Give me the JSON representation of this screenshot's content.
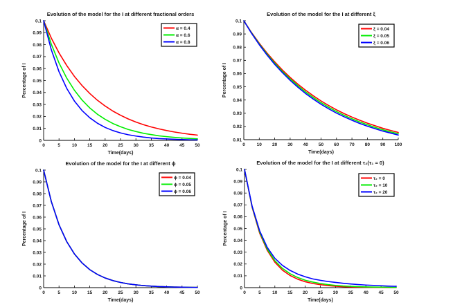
{
  "figure": {
    "background": "#ffffff",
    "axis_color": "#000000",
    "text_color": "#1a1a1a"
  },
  "chart_data": [
    {
      "id": "fractional-orders",
      "type": "line",
      "title": "Evolution of the model for the I at different fractional orders",
      "xlabel": "Time(days)",
      "ylabel": "Percentage of I",
      "xlim": [
        0,
        50
      ],
      "ylim": [
        0,
        0.1
      ],
      "xticks": [
        "0",
        "5",
        "10",
        "15",
        "20",
        "25",
        "30",
        "35",
        "40",
        "45",
        "50"
      ],
      "yticks": [
        "0",
        "0.01",
        "0.02",
        "0.03",
        "0.04",
        "0.05",
        "0.06",
        "0.07",
        "0.08",
        "0.09",
        "0.1"
      ],
      "grid": false,
      "legend_position": "top-right",
      "x": [
        0,
        2.5,
        5,
        7.5,
        10,
        12.5,
        15,
        17.5,
        20,
        22.5,
        25,
        27.5,
        30,
        32.5,
        35,
        37.5,
        40,
        42.5,
        45,
        47.5,
        50
      ],
      "series": [
        {
          "name": "α = 0.4",
          "color": "#ff0000",
          "values": [
            0.1,
            0.0855,
            0.0731,
            0.0626,
            0.0535,
            0.0458,
            0.0392,
            0.0335,
            0.0287,
            0.0245,
            0.021,
            0.0179,
            0.0153,
            0.0131,
            0.0112,
            0.0096,
            0.0082,
            0.007,
            0.006,
            0.0051,
            0.0044
          ]
        },
        {
          "name": "α = 0.6",
          "color": "#00ee00",
          "values": [
            0.1,
            0.0804,
            0.0647,
            0.0521,
            0.0419,
            0.0337,
            0.0271,
            0.0218,
            0.0176,
            0.0141,
            0.0114,
            0.0091,
            0.0074,
            0.0059,
            0.0048,
            0.0038,
            0.0031,
            0.0025,
            0.002,
            0.0016,
            0.0013
          ]
        },
        {
          "name": "α = 0.8",
          "color": "#0000ff",
          "values": [
            0.1,
            0.0757,
            0.0574,
            0.0435,
            0.0329,
            0.0249,
            0.0189,
            0.0143,
            0.0108,
            0.0082,
            0.0062,
            0.0047,
            0.0036,
            0.0027,
            0.002,
            0.0015,
            0.0012,
            0.0009,
            0.0007,
            0.0005,
            0.0004
          ]
        }
      ]
    },
    {
      "id": "xi",
      "type": "line",
      "title": "Evolution of the model for the I at different ξ",
      "xlabel": "Time(days)",
      "ylabel": "Percentage of I",
      "xlim": [
        0,
        100
      ],
      "ylim": [
        0.01,
        0.1
      ],
      "xticks": [
        "0",
        "10",
        "20",
        "30",
        "40",
        "50",
        "60",
        "70",
        "80",
        "90",
        "100"
      ],
      "yticks": [
        "0.01",
        "0.02",
        "0.03",
        "0.04",
        "0.05",
        "0.06",
        "0.07",
        "0.08",
        "0.09",
        "0.1"
      ],
      "grid": false,
      "legend_position": "top-right",
      "x": [
        0,
        5,
        10,
        15,
        20,
        25,
        30,
        35,
        40,
        45,
        50,
        55,
        60,
        65,
        70,
        75,
        80,
        85,
        90,
        95,
        100
      ],
      "series": [
        {
          "name": "ξ = 0.04",
          "color": "#ff0000",
          "values": [
            0.1,
            0.0911,
            0.083,
            0.0756,
            0.0689,
            0.0627,
            0.0571,
            0.052,
            0.0474,
            0.0432,
            0.0393,
            0.0358,
            0.0326,
            0.0297,
            0.0271,
            0.0247,
            0.0225,
            0.0205,
            0.0186,
            0.017,
            0.0155
          ]
        },
        {
          "name": "ξ = 0.05",
          "color": "#00ee00",
          "values": [
            0.1,
            0.0908,
            0.0824,
            0.0748,
            0.0679,
            0.0616,
            0.056,
            0.0508,
            0.0461,
            0.0419,
            0.038,
            0.0345,
            0.0313,
            0.0284,
            0.0258,
            0.0234,
            0.0213,
            0.0193,
            0.0175,
            0.0159,
            0.0145
          ]
        },
        {
          "name": "ξ = 0.06",
          "color": "#0000ff",
          "values": [
            0.1,
            0.0905,
            0.0819,
            0.0741,
            0.067,
            0.0607,
            0.0549,
            0.0497,
            0.0449,
            0.0407,
            0.0368,
            0.0333,
            0.0301,
            0.0273,
            0.0247,
            0.0223,
            0.0202,
            0.0183,
            0.0165,
            0.015,
            0.0135
          ]
        }
      ]
    },
    {
      "id": "phi",
      "type": "line",
      "title": "Evolution of the model for the I at different ϕ",
      "xlabel": "Time(days)",
      "ylabel": "Percentage of I",
      "xlim": [
        0,
        50
      ],
      "ylim": [
        0,
        0.1
      ],
      "xticks": [
        "0",
        "5",
        "10",
        "15",
        "20",
        "25",
        "30",
        "35",
        "40",
        "45",
        "50"
      ],
      "yticks": [
        "0",
        "0.01",
        "0.02",
        "0.03",
        "0.04",
        "0.05",
        "0.06",
        "0.07",
        "0.08",
        "0.09",
        "0.1"
      ],
      "grid": false,
      "legend_position": "top-right",
      "x": [
        0,
        2.5,
        5,
        7.5,
        10,
        12.5,
        15,
        17.5,
        20,
        22.5,
        25,
        27.5,
        30,
        32.5,
        35,
        37.5,
        40,
        42.5,
        45,
        47.5,
        50
      ],
      "series": [
        {
          "name": "ϕ = 0.04",
          "color": "#ff0000",
          "values": [
            0.1,
            0.0732,
            0.0535,
            0.0392,
            0.0287,
            0.021,
            0.0153,
            0.0112,
            0.0082,
            0.006,
            0.0044,
            0.0032,
            0.0024,
            0.0017,
            0.0013,
            0.0009,
            0.0007,
            0.0005,
            0.0004,
            0.0003,
            0.0002
          ]
        },
        {
          "name": "ϕ = 0.05",
          "color": "#00ee00",
          "values": [
            0.1,
            0.0732,
            0.0535,
            0.0392,
            0.0287,
            0.021,
            0.0153,
            0.0112,
            0.0082,
            0.006,
            0.0044,
            0.0032,
            0.0024,
            0.0017,
            0.0013,
            0.0009,
            0.0007,
            0.0005,
            0.0004,
            0.0003,
            0.0002
          ]
        },
        {
          "name": "ϕ = 0.06",
          "color": "#0000ff",
          "values": [
            0.1,
            0.0732,
            0.0535,
            0.0392,
            0.0287,
            0.021,
            0.0153,
            0.0112,
            0.0082,
            0.006,
            0.0044,
            0.0032,
            0.0024,
            0.0017,
            0.0013,
            0.0009,
            0.0007,
            0.0005,
            0.0004,
            0.0003,
            0.0002
          ]
        }
      ]
    },
    {
      "id": "tau2",
      "type": "line",
      "title": "Evolution of the model for the I at different τ₂(τ₁ = 0)",
      "xlabel": "Time(days)",
      "ylabel": "Percentage of I",
      "xlim": [
        0,
        50
      ],
      "ylim": [
        0,
        0.1
      ],
      "xticks": [
        "0",
        "5",
        "10",
        "15",
        "20",
        "25",
        "30",
        "35",
        "40",
        "45",
        "50"
      ],
      "yticks": [
        "0",
        "0.01",
        "0.02",
        "0.03",
        "0.04",
        "0.05",
        "0.06",
        "0.07",
        "0.08",
        "0.09",
        "0.1"
      ],
      "grid": false,
      "legend_position": "top-right",
      "x": [
        0,
        2.5,
        5,
        7.5,
        10,
        12.5,
        15,
        17.5,
        20,
        22.5,
        25,
        27.5,
        30,
        32.5,
        35,
        37.5,
        40,
        42.5,
        45,
        47.5,
        50
      ],
      "series": [
        {
          "name": "τ₂ = 0",
          "color": "#ff0000",
          "values": [
            0.1,
            0.068,
            0.046,
            0.0315,
            0.0215,
            0.0148,
            0.0103,
            0.0072,
            0.005,
            0.0035,
            0.0025,
            0.0017,
            0.0012,
            0.0008,
            0.0006,
            0.0004,
            0.0003,
            0.0002,
            0.0002,
            0.0001,
            0.0001
          ]
        },
        {
          "name": "τ₂ = 10",
          "color": "#00ee00",
          "values": [
            0.1,
            0.0685,
            0.047,
            0.0325,
            0.0228,
            0.0163,
            0.0118,
            0.0086,
            0.0063,
            0.0047,
            0.0035,
            0.0026,
            0.0019,
            0.0014,
            0.0011,
            0.0008,
            0.0006,
            0.0005,
            0.0004,
            0.0003,
            0.0002
          ]
        },
        {
          "name": "τ₂ = 20",
          "color": "#0000ff",
          "values": [
            0.1,
            0.069,
            0.048,
            0.034,
            0.0248,
            0.0188,
            0.0146,
            0.0115,
            0.0092,
            0.0074,
            0.0062,
            0.0052,
            0.0044,
            0.0037,
            0.0031,
            0.0026,
            0.0022,
            0.0019,
            0.0016,
            0.0013,
            0.0011
          ]
        }
      ]
    }
  ]
}
